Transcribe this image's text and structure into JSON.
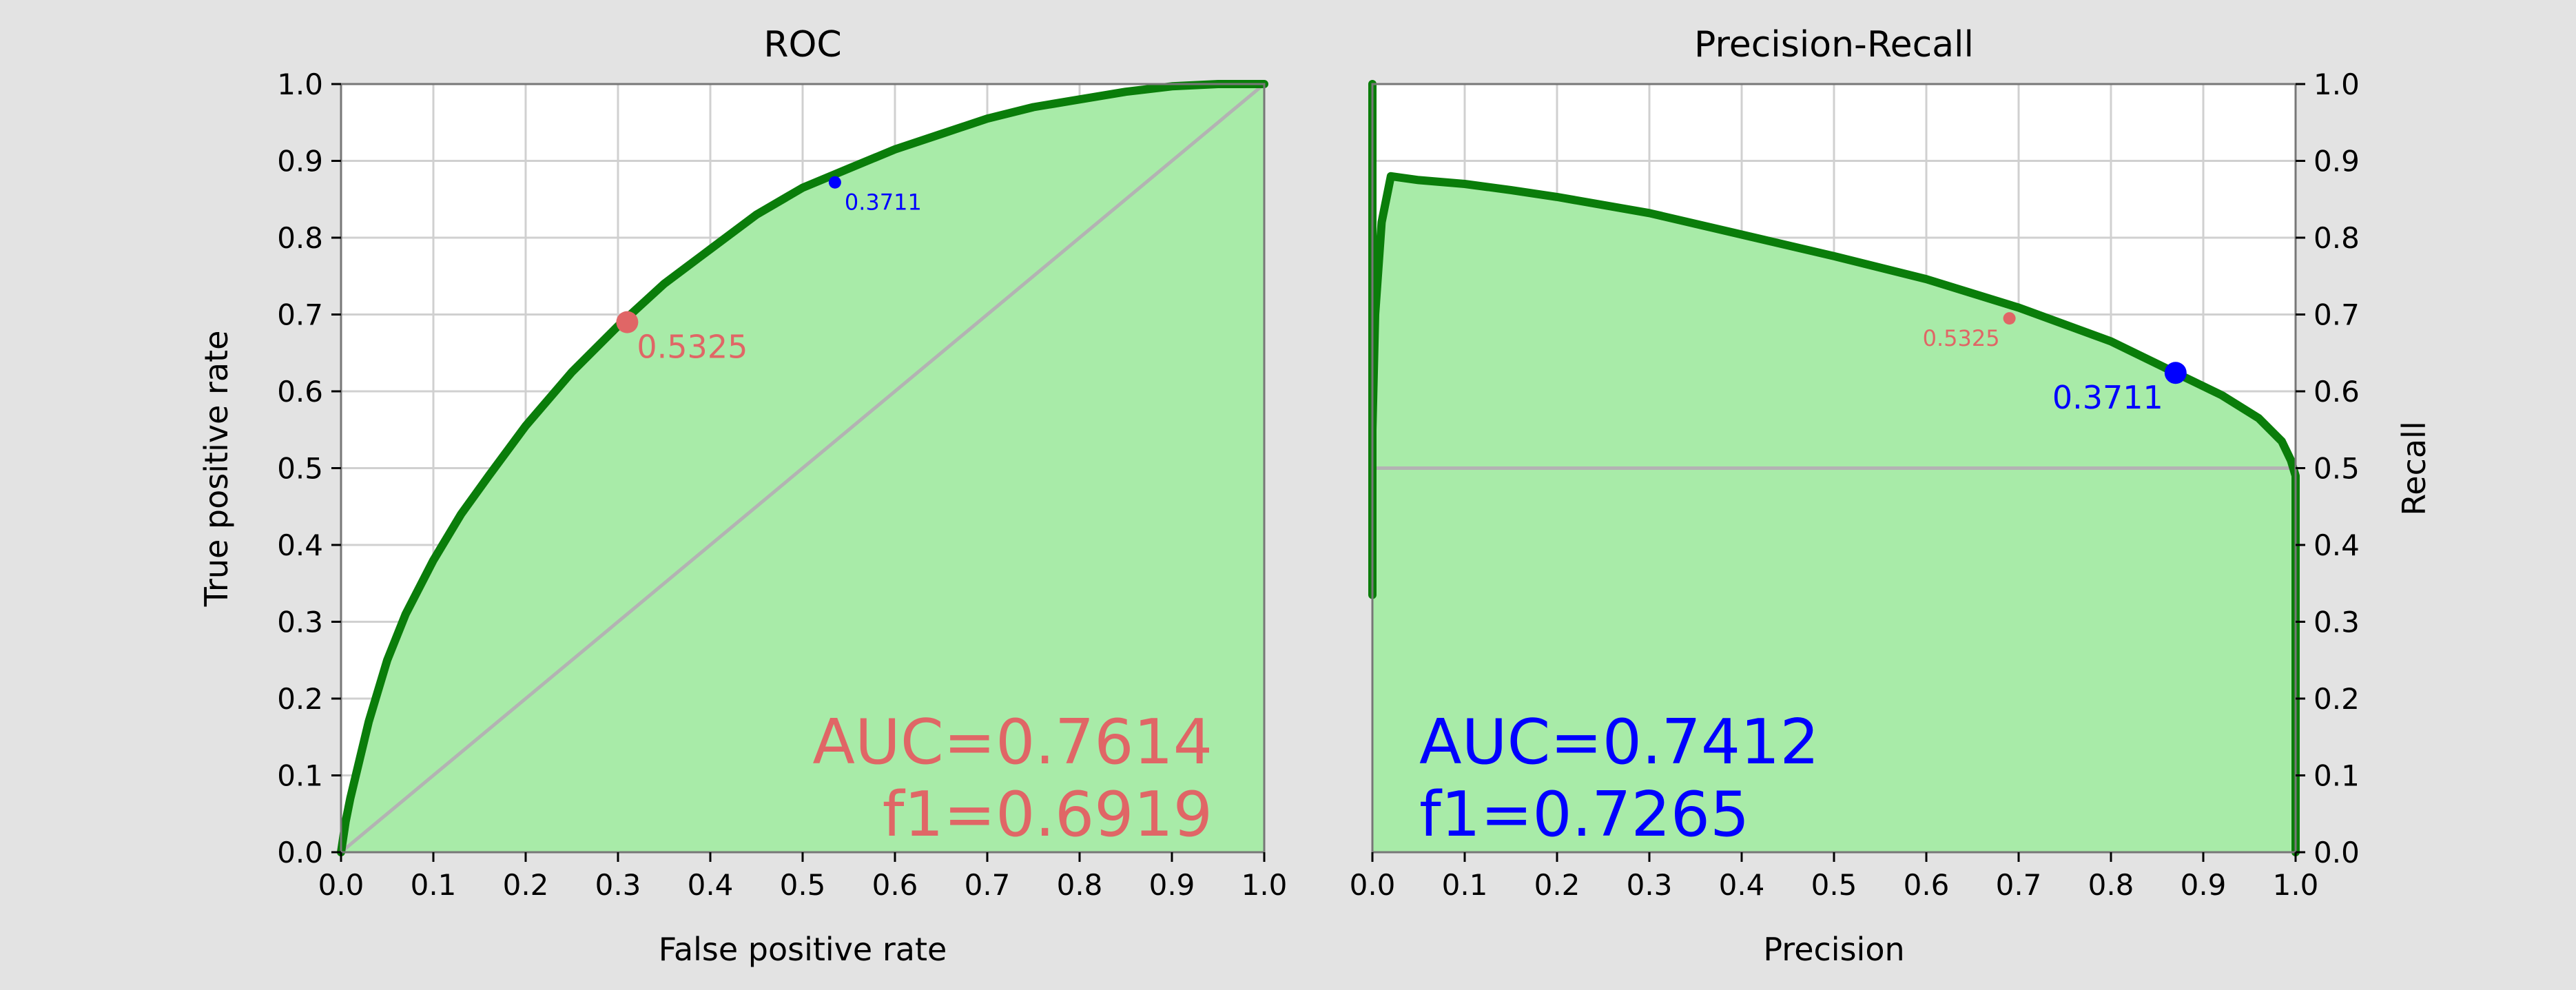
{
  "figure": {
    "background": "#e3e3e3"
  },
  "chart_data": [
    {
      "type": "line",
      "title": "ROC",
      "xlabel": "False positive rate",
      "ylabel": "True positive rate",
      "xlim": [
        0,
        1
      ],
      "ylim": [
        0,
        1
      ],
      "xticks": [
        "0.0",
        "0.1",
        "0.2",
        "0.3",
        "0.4",
        "0.5",
        "0.6",
        "0.7",
        "0.8",
        "0.9",
        "1.0"
      ],
      "yticks": [
        "0.0",
        "0.1",
        "0.2",
        "0.3",
        "0.4",
        "0.5",
        "0.6",
        "0.7",
        "0.8",
        "0.9",
        "1.0"
      ],
      "grid": true,
      "y_axis_side": "left",
      "series": [
        {
          "role": "curve",
          "color": "#0a7d0a",
          "fill": "#a8eba8",
          "x": [
            0.0,
            0.005,
            0.01,
            0.02,
            0.03,
            0.05,
            0.07,
            0.1,
            0.13,
            0.16,
            0.2,
            0.25,
            0.3,
            0.35,
            0.4,
            0.45,
            0.5,
            0.55,
            0.6,
            0.65,
            0.7,
            0.75,
            0.8,
            0.85,
            0.9,
            0.95,
            1.0
          ],
          "y": [
            0.0,
            0.04,
            0.07,
            0.12,
            0.17,
            0.25,
            0.31,
            0.38,
            0.44,
            0.49,
            0.555,
            0.625,
            0.685,
            0.74,
            0.785,
            0.83,
            0.865,
            0.89,
            0.915,
            0.935,
            0.955,
            0.97,
            0.98,
            0.99,
            0.997,
            1.0,
            1.0
          ]
        },
        {
          "role": "reference",
          "color": "#b3b3b3",
          "x": [
            0,
            1
          ],
          "y": [
            0,
            1
          ]
        }
      ],
      "markers": [
        {
          "label": "0.5325",
          "x": 0.31,
          "y": 0.69,
          "color": "#e06666",
          "size": "large"
        },
        {
          "label": "0.3711",
          "x": 0.535,
          "y": 0.872,
          "color": "#0000ff",
          "size": "small"
        }
      ],
      "annotations": {
        "auc": "AUC=0.7614",
        "f1": "f1=0.6919",
        "color": "#e06666",
        "placement": "bottom-right"
      }
    },
    {
      "type": "line",
      "title": "Precision-Recall",
      "xlabel": "Precision",
      "ylabel": "Recall",
      "xlim": [
        0,
        1
      ],
      "ylim": [
        0,
        1
      ],
      "xticks": [
        "0.0",
        "0.1",
        "0.2",
        "0.3",
        "0.4",
        "0.5",
        "0.6",
        "0.7",
        "0.8",
        "0.9",
        "1.0"
      ],
      "yticks": [
        "0.0",
        "0.1",
        "0.2",
        "0.3",
        "0.4",
        "0.5",
        "0.6",
        "0.7",
        "0.8",
        "0.9",
        "1.0"
      ],
      "grid": true,
      "y_axis_side": "right",
      "series": [
        {
          "role": "curve",
          "color": "#0a7d0a",
          "fill": "#a8eba8",
          "x": [
            0.0,
            0.0,
            0.0,
            0.0,
            0.003,
            0.01,
            0.02,
            0.05,
            0.1,
            0.15,
            0.2,
            0.3,
            0.4,
            0.5,
            0.6,
            0.7,
            0.8,
            0.87,
            0.92,
            0.96,
            0.985,
            0.995,
            1.0,
            1.0
          ],
          "y": [
            1.0,
            0.335,
            0.6,
            0.55,
            0.7,
            0.82,
            0.88,
            0.875,
            0.87,
            0.862,
            0.853,
            0.832,
            0.804,
            0.776,
            0.746,
            0.709,
            0.665,
            0.624,
            0.595,
            0.565,
            0.535,
            0.51,
            0.49,
            0.0
          ]
        },
        {
          "role": "reference",
          "color": "#b3b3b3",
          "x": [
            0,
            1
          ],
          "y": [
            0.5,
            0.5
          ]
        }
      ],
      "markers": [
        {
          "label": "0.5325",
          "x": 0.69,
          "y": 0.695,
          "color": "#e06666",
          "size": "small"
        },
        {
          "label": "0.3711",
          "x": 0.87,
          "y": 0.624,
          "color": "#0000ff",
          "size": "large"
        }
      ],
      "annotations": {
        "auc": "AUC=0.7412",
        "f1": "f1=0.7265",
        "color": "#0000ff",
        "placement": "bottom-left"
      }
    }
  ]
}
